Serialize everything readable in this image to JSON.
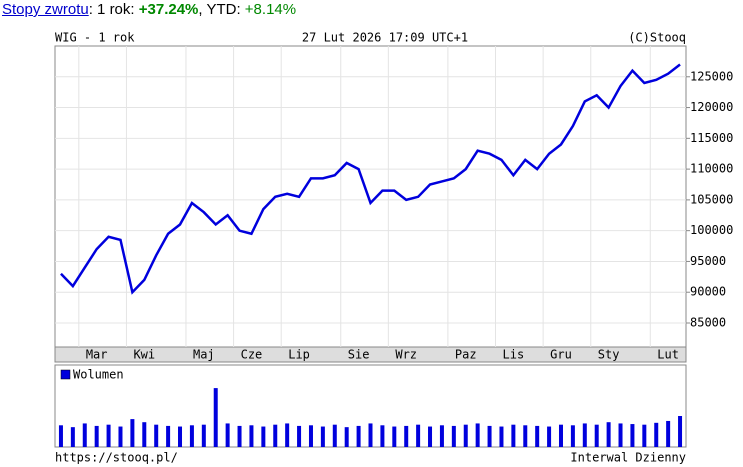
{
  "header": {
    "link": "Stopy zwrotu",
    "period_label": ": 1 rok:",
    "period_return": "+37.24%",
    "ytd_label": ", YTD:",
    "ytd_return": "+8.14%"
  },
  "chart_data": [
    {
      "type": "line",
      "title": "WIG - 1 rok",
      "subtitle": "27 Lut 2026 17:09 UTC+1",
      "source": "(C)Stooq",
      "categories": [
        null,
        null,
        "Mar",
        null,
        null,
        null,
        "Kwi",
        null,
        null,
        null,
        null,
        "Maj",
        null,
        null,
        null,
        "Cze",
        null,
        null,
        null,
        "Lip",
        null,
        null,
        null,
        null,
        "Sie",
        null,
        null,
        null,
        "Wrz",
        null,
        null,
        null,
        null,
        "Paz",
        null,
        null,
        null,
        "Lis",
        null,
        null,
        null,
        "Gru",
        null,
        null,
        null,
        "Sty",
        null,
        null,
        null,
        null,
        "Lut",
        null,
        null
      ],
      "color": "#0000dd",
      "values": [
        93000,
        91000,
        94000,
        97000,
        99000,
        98500,
        90000,
        92000,
        96000,
        99500,
        101000,
        104500,
        103000,
        101000,
        102500,
        100000,
        99500,
        103500,
        105500,
        106000,
        105500,
        108500,
        108500,
        109000,
        111000,
        110000,
        104500,
        106500,
        106500,
        105000,
        105500,
        107500,
        108000,
        108500,
        110000,
        113000,
        112500,
        111500,
        109000,
        111500,
        110000,
        112500,
        114000,
        117000,
        121000,
        122000,
        120000,
        123500,
        126000,
        124000,
        124500,
        125500,
        127000
      ],
      "ylim": [
        81100,
        130000
      ],
      "yticks": [
        85000,
        90000,
        95000,
        100000,
        105000,
        110000,
        115000,
        120000,
        125000
      ],
      "grid": true
    },
    {
      "type": "bar",
      "series": [
        {
          "name": "Wolumen",
          "color": "#0000dd",
          "values": [
            35,
            32,
            38,
            34,
            36,
            33,
            45,
            40,
            36,
            34,
            33,
            35,
            36,
            95,
            38,
            34,
            35,
            33,
            36,
            38,
            34,
            35,
            33,
            36,
            32,
            34,
            38,
            35,
            33,
            34,
            36,
            33,
            35,
            34,
            36,
            38,
            34,
            33,
            36,
            35,
            34,
            33,
            36,
            35,
            38,
            36,
            40,
            38,
            37,
            36,
            39,
            42,
            50
          ]
        }
      ],
      "ylim": [
        0,
        100
      ]
    }
  ],
  "footer": {
    "url": "https://stooq.pl/",
    "interval": "Interwal Dzienny"
  }
}
